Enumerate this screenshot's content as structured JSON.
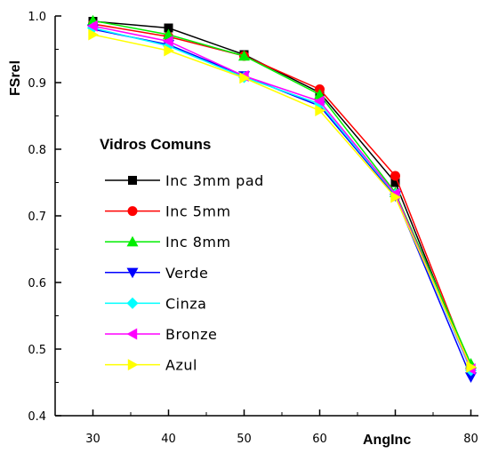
{
  "chart_data": {
    "type": "line",
    "xlabel": "AngInc",
    "ylabel": "FSrel",
    "x": [
      30,
      40,
      50,
      60,
      70,
      80
    ],
    "xlim": [
      25,
      81
    ],
    "ylim": [
      0.4,
      1.0
    ],
    "xticks": [
      "30",
      "40",
      "50",
      "60",
      "70",
      "80"
    ],
    "yticks": [
      "0.4",
      "0.5",
      "0.6",
      "0.7",
      "0.8",
      "0.9",
      "1.0"
    ],
    "grid": false,
    "legend": {
      "title": "Vidros Comuns",
      "placement": "center-left"
    },
    "series": [
      {
        "name": "Inc 3mm pad",
        "color": "#000000",
        "marker": "square",
        "values": [
          0.992,
          0.982,
          0.942,
          0.885,
          0.75,
          0.468
        ]
      },
      {
        "name": "Inc 5mm",
        "color": "#ff0000",
        "marker": "circle",
        "values": [
          0.988,
          0.969,
          0.94,
          0.89,
          0.76,
          0.472
        ]
      },
      {
        "name": "Inc 8mm",
        "color": "#00ee00",
        "marker": "triangle-up",
        "values": [
          0.993,
          0.972,
          0.94,
          0.882,
          0.735,
          0.478
        ]
      },
      {
        "name": "Verde",
        "color": "#0000ff",
        "marker": "triangle-down",
        "values": [
          0.98,
          0.957,
          0.91,
          0.865,
          0.73,
          0.458
        ]
      },
      {
        "name": "Cinza",
        "color": "#00ffff",
        "marker": "diamond",
        "values": [
          0.982,
          0.955,
          0.908,
          0.868,
          0.732,
          0.468
        ]
      },
      {
        "name": "Bronze",
        "color": "#ff00ff",
        "marker": "triangle-left",
        "values": [
          0.985,
          0.962,
          0.91,
          0.872,
          0.733,
          0.47
        ]
      },
      {
        "name": "Azul",
        "color": "#ffff00",
        "marker": "triangle-right",
        "values": [
          0.972,
          0.948,
          0.907,
          0.858,
          0.728,
          0.473
        ]
      }
    ]
  }
}
